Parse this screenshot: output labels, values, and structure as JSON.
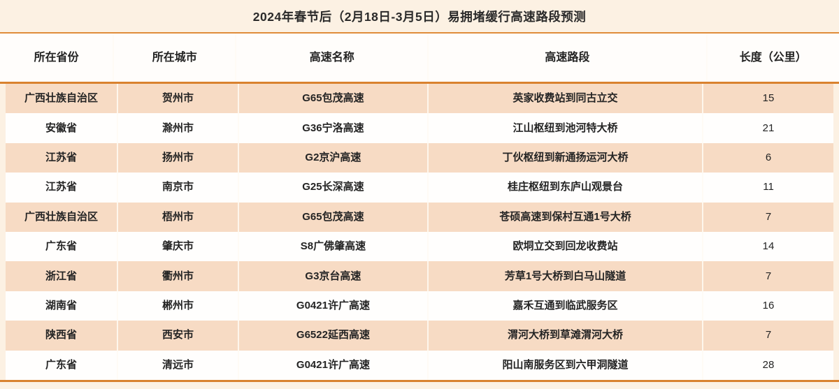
{
  "page": {
    "title": "2024年春节后（2月18日-3月5日）易拥堵缓行高速路段预测"
  },
  "chart_data": {
    "type": "table",
    "title": "2024年春节后（2月18日-3月5日）易拥堵缓行高速路段预测",
    "columns": [
      "所在省份",
      "所在城市",
      "高速名称",
      "高速路段",
      "长度（公里）"
    ],
    "rows": [
      [
        "广西壮族自治区",
        "贺州市",
        "G65包茂高速",
        "英家收费站到同古立交",
        15
      ],
      [
        "安徽省",
        "滁州市",
        "G36宁洛高速",
        "江山枢纽到池河特大桥",
        21
      ],
      [
        "江苏省",
        "扬州市",
        "G2京沪高速",
        "丁伙枢纽到新通扬运河大桥",
        6
      ],
      [
        "江苏省",
        "南京市",
        "G25长深高速",
        "桂庄枢纽到东庐山观景台",
        11
      ],
      [
        "广西壮族自治区",
        "梧州市",
        "G65包茂高速",
        "苍硕高速到保村互通1号大桥",
        7
      ],
      [
        "广东省",
        "肇庆市",
        "S8广佛肇高速",
        "欧垌立交到回龙收费站",
        14
      ],
      [
        "浙江省",
        "衢州市",
        "G3京台高速",
        "芳草1号大桥到白马山隧道",
        7
      ],
      [
        "湖南省",
        "郴州市",
        "G0421许广高速",
        "嘉禾互通到临武服务区",
        16
      ],
      [
        "陕西省",
        "西安市",
        "G6522延西高速",
        "渭河大桥到草滩渭河大桥",
        7
      ],
      [
        "广东省",
        "清远市",
        "G0421许广高速",
        "阳山南服务区到六甲洞隧道",
        28
      ]
    ],
    "layout": {
      "striped": true,
      "stripe_rows": "odd",
      "header_position": "top"
    }
  },
  "colors": {
    "accent_orange": "#d9822f",
    "stripe_peach": "#f7dbc4",
    "background_cream": "#fcf1e3",
    "header_background": "#fffdfb",
    "text_dark": "#262626"
  }
}
